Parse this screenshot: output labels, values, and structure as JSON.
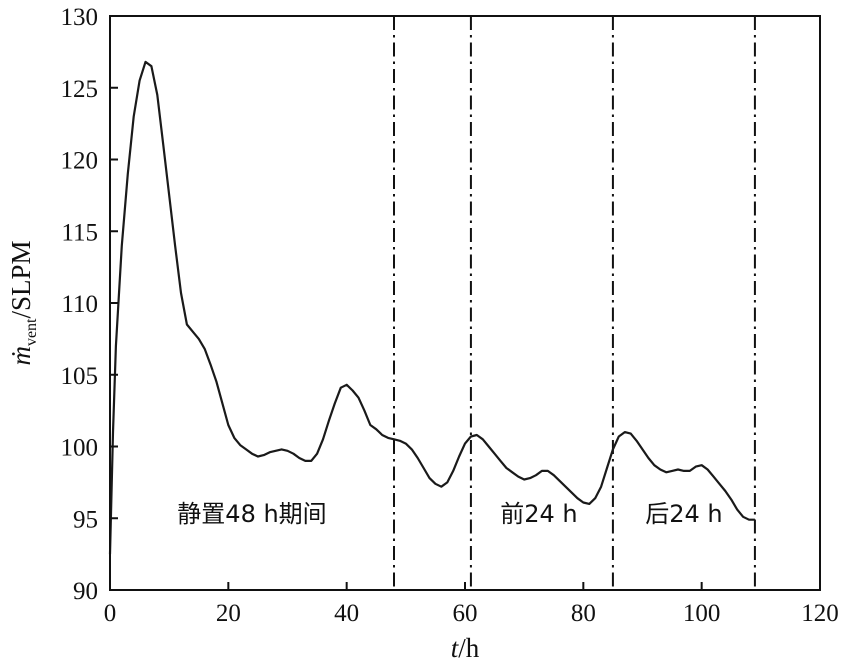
{
  "chart_data": {
    "type": "line",
    "title": "",
    "xlabel_italic": "t",
    "xlabel_unit": "/h",
    "ylabel_symbol": "ṁ",
    "ylabel_subscript": "vent",
    "ylabel_unit": "/SLPM",
    "xlim": [
      0,
      120
    ],
    "ylim": [
      90,
      130
    ],
    "xticks": [
      0,
      20,
      40,
      60,
      80,
      100,
      120
    ],
    "yticks": [
      90,
      95,
      100,
      105,
      110,
      115,
      120,
      125,
      130
    ],
    "grid": false,
    "line_color": "#1a1a1a",
    "series": [
      {
        "x": [
          0,
          0.5,
          1,
          2,
          3,
          4,
          5,
          6,
          7,
          8,
          9,
          10,
          11,
          12,
          13,
          14,
          15,
          16,
          17,
          18,
          19,
          20,
          21,
          22,
          23,
          24,
          25,
          26,
          27,
          28,
          29,
          30,
          31,
          32,
          33,
          34,
          35,
          36,
          37,
          38,
          39,
          40,
          41,
          42,
          43,
          44,
          45,
          46,
          47,
          48,
          49,
          50,
          51,
          52,
          53,
          54,
          55,
          56,
          57,
          58,
          59,
          60,
          61,
          62,
          63,
          64,
          65,
          66,
          67,
          68,
          69,
          70,
          71,
          72,
          73,
          74,
          75,
          76,
          77,
          78,
          79,
          80,
          81,
          82,
          83,
          84,
          85,
          86,
          87,
          88,
          89,
          90,
          91,
          92,
          93,
          94,
          95,
          96,
          97,
          98,
          99,
          100,
          101,
          102,
          103,
          104,
          105,
          106,
          107,
          108,
          109
        ],
        "y": [
          92.5,
          101,
          107,
          114,
          119,
          123,
          125.5,
          126.8,
          126.5,
          124.5,
          121,
          117.5,
          114,
          110.7,
          108.5,
          108,
          107.5,
          106.8,
          105.7,
          104.5,
          103,
          101.5,
          100.6,
          100.1,
          99.8,
          99.5,
          99.3,
          99.4,
          99.6,
          99.7,
          99.8,
          99.7,
          99.5,
          99.2,
          99,
          99,
          99.5,
          100.5,
          101.8,
          103,
          104.1,
          104.3,
          103.9,
          103.4,
          102.5,
          101.5,
          101.2,
          100.8,
          100.6,
          100.5,
          100.4,
          100.2,
          99.8,
          99.2,
          98.5,
          97.8,
          97.4,
          97.2,
          97.5,
          98.3,
          99.3,
          100.2,
          100.7,
          100.8,
          100.5,
          100,
          99.5,
          99,
          98.5,
          98.2,
          97.9,
          97.7,
          97.8,
          98,
          98.3,
          98.3,
          98,
          97.6,
          97.2,
          96.8,
          96.4,
          96.1,
          96,
          96.4,
          97.2,
          98.5,
          99.8,
          100.7,
          101,
          100.9,
          100.4,
          99.8,
          99.2,
          98.7,
          98.4,
          98.2,
          98.3,
          98.4,
          98.3,
          98.3,
          98.6,
          98.7,
          98.4,
          97.9,
          97.4,
          96.9,
          96.3,
          95.6,
          95.1,
          94.9,
          94.9
        ]
      }
    ],
    "vlines": [
      0,
      48,
      61,
      85,
      109
    ],
    "annotations": [
      {
        "text": "静置48 h期间",
        "x": 24,
        "y": 95.3
      },
      {
        "text": "前24 h",
        "x": 72.5,
        "y": 95.3
      },
      {
        "text": "后24 h",
        "x": 97,
        "y": 95.3
      }
    ]
  }
}
